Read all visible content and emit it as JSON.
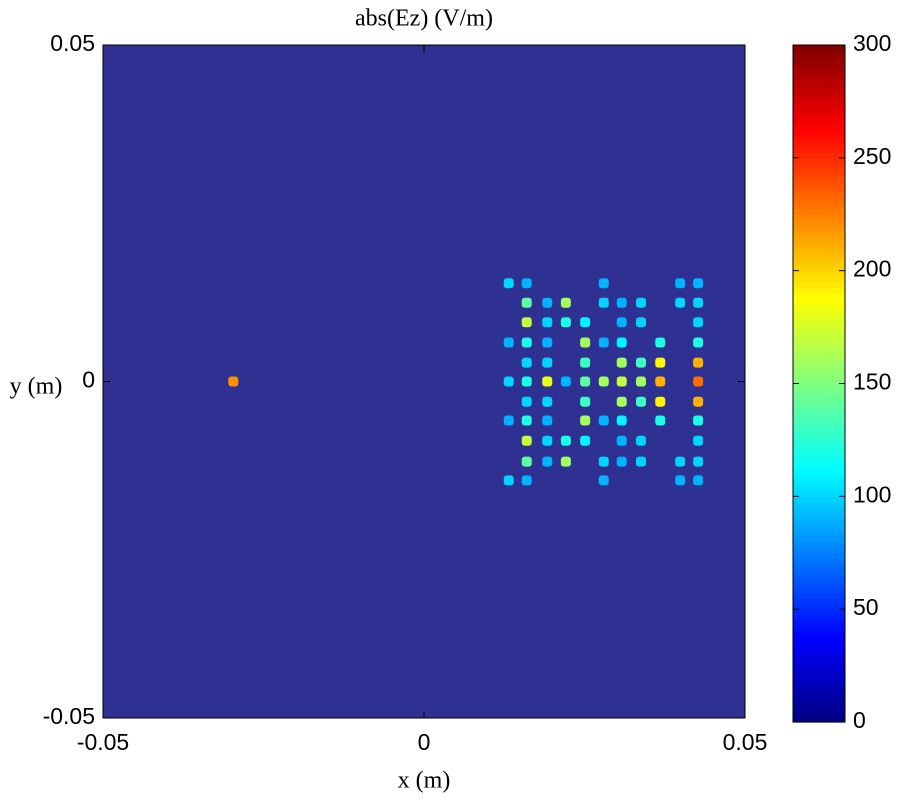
{
  "chart_data": {
    "type": "heatmap",
    "title": "abs(Ez) (V/m)",
    "x_label": "x (m)",
    "y_label": "y (m)",
    "xlim": [
      -0.05,
      0.05
    ],
    "ylim": [
      -0.05,
      0.05
    ],
    "xticks": [
      -0.05,
      0,
      0.05
    ],
    "yticks": [
      -0.05,
      0,
      0.05
    ],
    "colormap": "jet",
    "background_color": "#2e3192",
    "clim": [
      0,
      300
    ],
    "cticks": [
      0,
      50,
      100,
      150,
      200,
      250,
      300
    ],
    "x": [
      -0.0297,
      0.0132,
      0.016,
      0.028,
      0.0399,
      0.0427,
      0.016,
      0.0192,
      0.0221,
      0.028,
      0.0308,
      0.0338,
      0.0399,
      0.0427,
      0.016,
      0.0192,
      0.0221,
      0.0251,
      0.0308,
      0.0338,
      0.0427,
      0.0132,
      0.016,
      0.0192,
      0.0251,
      0.028,
      0.0308,
      0.0368,
      0.0427,
      0.016,
      0.0192,
      0.0251,
      0.0308,
      0.0338,
      0.0368,
      0.0427,
      0.0132,
      0.016,
      0.0192,
      0.0221,
      0.0251,
      0.028,
      0.0308,
      0.0338,
      0.0368,
      0.0427,
      0.016,
      0.0192,
      0.0251,
      0.0308,
      0.0338,
      0.0368,
      0.0427,
      0.0132,
      0.016,
      0.0192,
      0.0251,
      0.028,
      0.0308,
      0.0368,
      0.0427,
      0.016,
      0.0192,
      0.0221,
      0.0251,
      0.0308,
      0.0338,
      0.0427,
      0.016,
      0.0192,
      0.0221,
      0.028,
      0.0308,
      0.0338,
      0.0399,
      0.0427,
      0.0132,
      0.016,
      0.028,
      0.0399,
      0.0427
    ],
    "y": [
      0,
      0.0146,
      0.0146,
      0.0146,
      0.0146,
      0.0146,
      0.0117,
      0.0117,
      0.0117,
      0.0117,
      0.0117,
      0.0117,
      0.0117,
      0.0117,
      0.0088,
      0.0088,
      0.0088,
      0.0088,
      0.0088,
      0.0088,
      0.0088,
      0.0058,
      0.0058,
      0.0058,
      0.0058,
      0.0058,
      0.0058,
      0.0058,
      0.0058,
      0.0028,
      0.0028,
      0.0028,
      0.0028,
      0.0028,
      0.0028,
      0.0028,
      0,
      0,
      0,
      0,
      0,
      0,
      0,
      0,
      0,
      0,
      -0.003,
      -0.003,
      -0.003,
      -0.003,
      -0.003,
      -0.003,
      -0.003,
      -0.0058,
      -0.0058,
      -0.0058,
      -0.0058,
      -0.0058,
      -0.0058,
      -0.0058,
      -0.0058,
      -0.0088,
      -0.0088,
      -0.0088,
      -0.0088,
      -0.0088,
      -0.0088,
      -0.0088,
      -0.0119,
      -0.0119,
      -0.0119,
      -0.0119,
      -0.0119,
      -0.0119,
      -0.0119,
      -0.0119,
      -0.0147,
      -0.0147,
      -0.0147,
      -0.0147,
      -0.0147
    ],
    "values": [
      220,
      100,
      90,
      90,
      90,
      90,
      140,
      90,
      160,
      100,
      90,
      100,
      100,
      100,
      170,
      100,
      120,
      110,
      90,
      100,
      100,
      90,
      120,
      90,
      160,
      90,
      110,
      120,
      120,
      100,
      100,
      130,
      160,
      130,
      190,
      210,
      100,
      120,
      180,
      90,
      140,
      160,
      170,
      160,
      210,
      230,
      100,
      100,
      130,
      160,
      130,
      190,
      210,
      90,
      120,
      90,
      160,
      90,
      110,
      120,
      120,
      170,
      100,
      120,
      110,
      90,
      100,
      100,
      140,
      90,
      160,
      100,
      90,
      100,
      100,
      100,
      100,
      90,
      90,
      90,
      90
    ]
  }
}
